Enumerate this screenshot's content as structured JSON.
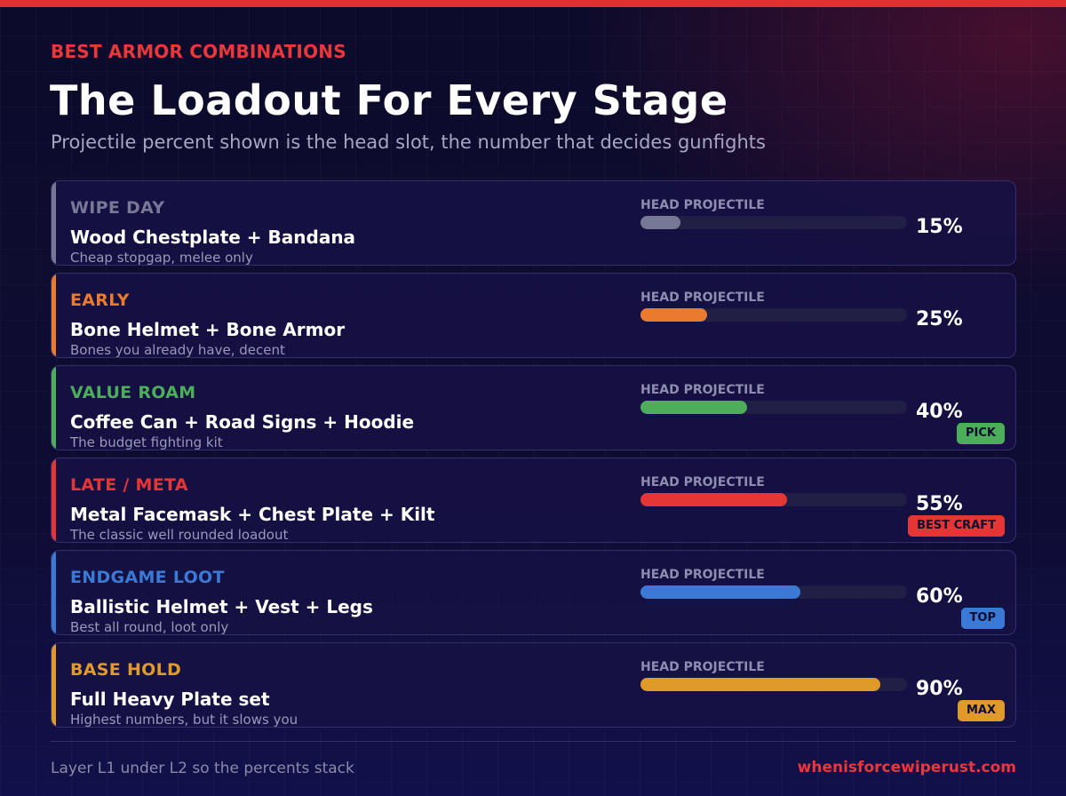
{
  "header": {
    "eyebrow": "BEST ARMOR COMBINATIONS",
    "title": "The Loadout For Every Stage",
    "subtitle": "Projectile percent shown is the head slot, the number that decides gunfights"
  },
  "cards": [
    {
      "stage": "WIPE DAY",
      "combo": "Wood Chestplate + Bandana",
      "note": "Cheap stopgap, melee only",
      "meter_label": "HEAD PROJECTILE",
      "percent_text": "15%",
      "percent": 15,
      "color": "#767896",
      "badge": null,
      "badge_color": null
    },
    {
      "stage": "EARLY",
      "combo": "Bone Helmet + Bone Armor",
      "note": "Bones you already have, decent",
      "meter_label": "HEAD PROJECTILE",
      "percent_text": "25%",
      "percent": 25,
      "color": "#ea7a2d",
      "badge": null,
      "badge_color": null
    },
    {
      "stage": "VALUE ROAM",
      "combo": "Coffee Can + Road Signs + Hoodie",
      "note": "The budget fighting kit",
      "meter_label": "HEAD PROJECTILE",
      "percent_text": "40%",
      "percent": 40,
      "color": "#4cad5a",
      "badge": "PICK",
      "badge_color": "#4cad5a"
    },
    {
      "stage": "LATE / META",
      "combo": "Metal Facemask + Chest Plate + Kilt",
      "note": "The classic well rounded loadout",
      "meter_label": "HEAD PROJECTILE",
      "percent_text": "55%",
      "percent": 55,
      "color": "#e53636",
      "badge": "BEST CRAFT",
      "badge_color": "#e53636"
    },
    {
      "stage": "ENDGAME LOOT",
      "combo": "Ballistic Helmet + Vest + Legs",
      "note": "Best all round, loot only",
      "meter_label": "HEAD PROJECTILE",
      "percent_text": "60%",
      "percent": 60,
      "color": "#3a7ad6",
      "badge": "TOP",
      "badge_color": "#3a7ad6"
    },
    {
      "stage": "BASE HOLD",
      "combo": "Full Heavy Plate set",
      "note": "Highest numbers, but it slows you",
      "meter_label": "HEAD PROJECTILE",
      "percent_text": "90%",
      "percent": 90,
      "color": "#e09a2a",
      "badge": "MAX",
      "badge_color": "#e09a2a"
    }
  ],
  "footer": {
    "note": "Layer L1 under L2 so the percents stack",
    "site": "whenisforcewiperust.com"
  }
}
